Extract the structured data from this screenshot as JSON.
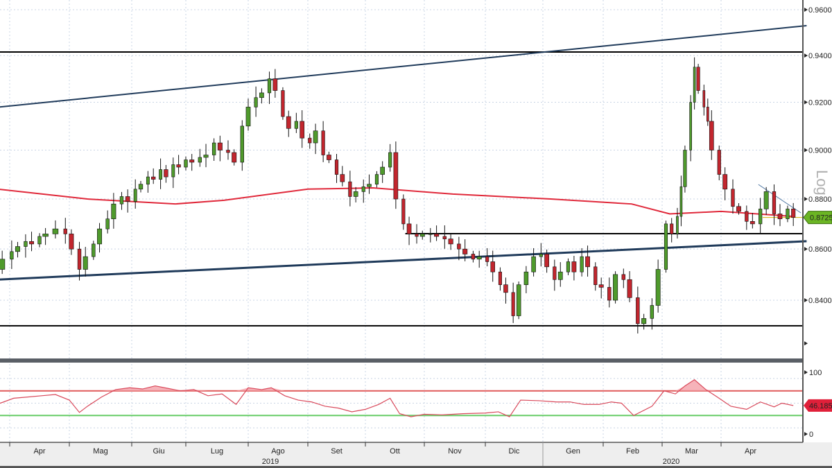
{
  "chart_data": [
    {
      "type": "candlestick",
      "scale": "log",
      "ylabel": "Log",
      "ylim": [
        0.82,
        0.965
      ],
      "yticks": [
        "0.96000",
        "0.94000",
        "0.92000",
        "0.90000",
        "0.88000",
        "0.86000",
        "0.84000"
      ],
      "ytick_values": [
        0.96,
        0.94,
        0.92,
        0.9,
        0.88,
        0.86,
        0.84
      ],
      "last_value_label": "0.87256",
      "grid": true,
      "colors": {
        "up": "#4f9a2c",
        "down": "#c2262e",
        "ma": "#e0283a",
        "trend": "#1f3a5a",
        "level": "#000000",
        "last_tag": "#6bb524"
      },
      "closes": [
        [
          "2019-03-20",
          0.858
        ],
        [
          "2019-03-25",
          0.852
        ],
        [
          "2019-03-28",
          0.856
        ],
        [
          "2019-04-02",
          0.859
        ],
        [
          "2019-04-05",
          0.861
        ],
        [
          "2019-04-09",
          0.863
        ],
        [
          "2019-04-12",
          0.862
        ],
        [
          "2019-04-16",
          0.865
        ],
        [
          "2019-04-19",
          0.866
        ],
        [
          "2019-04-24",
          0.868
        ],
        [
          "2019-04-29",
          0.866
        ],
        [
          "2019-05-02",
          0.86
        ],
        [
          "2019-05-06",
          0.852
        ],
        [
          "2019-05-09",
          0.857
        ],
        [
          "2019-05-13",
          0.862
        ],
        [
          "2019-05-16",
          0.868
        ],
        [
          "2019-05-20",
          0.872
        ],
        [
          "2019-05-23",
          0.878
        ],
        [
          "2019-05-27",
          0.881
        ],
        [
          "2019-05-30",
          0.879
        ],
        [
          "2019-06-03",
          0.884
        ],
        [
          "2019-06-06",
          0.886
        ],
        [
          "2019-06-10",
          0.889
        ],
        [
          "2019-06-13",
          0.888
        ],
        [
          "2019-06-17",
          0.892
        ],
        [
          "2019-06-20",
          0.889
        ],
        [
          "2019-06-24",
          0.894
        ],
        [
          "2019-06-27",
          0.893
        ],
        [
          "2019-07-01",
          0.896
        ],
        [
          "2019-07-04",
          0.895
        ],
        [
          "2019-07-08",
          0.897
        ],
        [
          "2019-07-11",
          0.898
        ],
        [
          "2019-07-15",
          0.903
        ],
        [
          "2019-07-18",
          0.9
        ],
        [
          "2019-07-22",
          0.899
        ],
        [
          "2019-07-25",
          0.895
        ],
        [
          "2019-07-29",
          0.91
        ],
        [
          "2019-08-01",
          0.918
        ],
        [
          "2019-08-05",
          0.922
        ],
        [
          "2019-08-08",
          0.924
        ],
        [
          "2019-08-12",
          0.93
        ],
        [
          "2019-08-15",
          0.925
        ],
        [
          "2019-08-19",
          0.914
        ],
        [
          "2019-08-22",
          0.909
        ],
        [
          "2019-08-26",
          0.912
        ],
        [
          "2019-08-29",
          0.905
        ],
        [
          "2019-09-02",
          0.903
        ],
        [
          "2019-09-05",
          0.908
        ],
        [
          "2019-09-09",
          0.898
        ],
        [
          "2019-09-12",
          0.896
        ],
        [
          "2019-09-16",
          0.89
        ],
        [
          "2019-09-19",
          0.887
        ],
        [
          "2019-09-23",
          0.881
        ],
        [
          "2019-09-26",
          0.883
        ],
        [
          "2019-09-30",
          0.885
        ],
        [
          "2019-10-03",
          0.886
        ],
        [
          "2019-10-07",
          0.89
        ],
        [
          "2019-10-10",
          0.893
        ],
        [
          "2019-10-14",
          0.899
        ],
        [
          "2019-10-17",
          0.88
        ],
        [
          "2019-10-21",
          0.87
        ],
        [
          "2019-10-24",
          0.866
        ],
        [
          "2019-10-28",
          0.865
        ],
        [
          "2019-10-31",
          0.866
        ],
        [
          "2019-11-04",
          0.866
        ],
        [
          "2019-11-07",
          0.865
        ],
        [
          "2019-11-11",
          0.864
        ],
        [
          "2019-11-14",
          0.862
        ],
        [
          "2019-11-18",
          0.86
        ],
        [
          "2019-11-21",
          0.858
        ],
        [
          "2019-11-25",
          0.856
        ],
        [
          "2019-11-28",
          0.857
        ],
        [
          "2019-12-02",
          0.855
        ],
        [
          "2019-12-05",
          0.851
        ],
        [
          "2019-12-09",
          0.846
        ],
        [
          "2019-12-12",
          0.843
        ],
        [
          "2019-12-16",
          0.834
        ],
        [
          "2019-12-19",
          0.846
        ],
        [
          "2019-12-23",
          0.851
        ],
        [
          "2019-12-27",
          0.857
        ],
        [
          "2019-12-31",
          0.858
        ],
        [
          "2020-01-03",
          0.853
        ],
        [
          "2020-01-07",
          0.848
        ],
        [
          "2020-01-10",
          0.851
        ],
        [
          "2020-01-14",
          0.855
        ],
        [
          "2020-01-17",
          0.851
        ],
        [
          "2020-01-21",
          0.857
        ],
        [
          "2020-01-24",
          0.853
        ],
        [
          "2020-01-28",
          0.846
        ],
        [
          "2020-01-31",
          0.845
        ],
        [
          "2020-02-04",
          0.84
        ],
        [
          "2020-02-07",
          0.85
        ],
        [
          "2020-02-11",
          0.848
        ],
        [
          "2020-02-14",
          0.841
        ],
        [
          "2020-02-18",
          0.831
        ],
        [
          "2020-02-21",
          0.833
        ],
        [
          "2020-02-25",
          0.838
        ],
        [
          "2020-02-28",
          0.852
        ],
        [
          "2020-03-03",
          0.87
        ],
        [
          "2020-03-06",
          0.866
        ],
        [
          "2020-03-09",
          0.873
        ],
        [
          "2020-03-11",
          0.885
        ],
        [
          "2020-03-13",
          0.9
        ],
        [
          "2020-03-16",
          0.92
        ],
        [
          "2020-03-18",
          0.935
        ],
        [
          "2020-03-20",
          0.925
        ],
        [
          "2020-03-23",
          0.918
        ],
        [
          "2020-03-25",
          0.912
        ],
        [
          "2020-03-27",
          0.9
        ],
        [
          "2020-03-31",
          0.89
        ],
        [
          "2020-04-03",
          0.884
        ],
        [
          "2020-04-07",
          0.877
        ],
        [
          "2020-04-10",
          0.875
        ],
        [
          "2020-04-14",
          0.871
        ],
        [
          "2020-04-17",
          0.87
        ],
        [
          "2020-04-21",
          0.876
        ],
        [
          "2020-04-24",
          0.883
        ],
        [
          "2020-04-28",
          0.874
        ],
        [
          "2020-05-01",
          0.872
        ],
        [
          "2020-05-05",
          0.876
        ],
        [
          "2020-05-08",
          0.87256
        ]
      ],
      "moving_average": [
        [
          "2019-03-20",
          0.8845
        ],
        [
          "2019-05-10",
          0.88
        ],
        [
          "2019-06-25",
          0.878
        ],
        [
          "2019-07-20",
          0.8795
        ],
        [
          "2019-09-01",
          0.884
        ],
        [
          "2019-10-05",
          0.8845
        ],
        [
          "2019-11-15",
          0.882
        ],
        [
          "2020-01-05",
          0.88
        ],
        [
          "2020-02-15",
          0.878
        ],
        [
          "2020-03-05",
          0.874
        ],
        [
          "2020-04-01",
          0.875
        ],
        [
          "2020-05-08",
          0.873
        ]
      ],
      "horizontal_levels": [
        {
          "value": 0.9415,
          "from": "2019-03-20",
          "to": "2020-05-15"
        },
        {
          "value": 0.8302,
          "from": "2019-03-20",
          "to": "2020-05-15"
        },
        {
          "value": 0.8661,
          "from": "2019-10-22",
          "to": "2020-05-15"
        }
      ],
      "trend_lines": [
        {
          "from": [
            "2019-03-20",
            0.9175
          ],
          "to": [
            "2020-05-15",
            0.953
          ]
        },
        {
          "from": [
            "2019-03-20",
            0.8478
          ],
          "to": [
            "2020-05-15",
            0.8631
          ],
          "bold": true
        },
        {
          "from": [
            "2020-04-20",
            0.8859
          ],
          "to": [
            "2020-05-12",
            0.8744
          ],
          "thin": true
        }
      ]
    },
    {
      "type": "line",
      "ylim": [
        0,
        100
      ],
      "yticks": [
        "100",
        "0"
      ],
      "ytick_values": [
        100,
        0
      ],
      "bands": [
        {
          "value": 70,
          "color": "#e05a5a"
        },
        {
          "value": 30,
          "color": "#66cc66"
        }
      ],
      "last_value_label": "46.1857",
      "colors": {
        "line": "#d9485a",
        "last_tag": "#e0203a"
      },
      "values": [
        [
          "2019-03-20",
          55
        ],
        [
          "2019-03-27",
          50
        ],
        [
          "2019-04-03",
          58
        ],
        [
          "2019-04-10",
          60
        ],
        [
          "2019-04-17",
          62
        ],
        [
          "2019-04-24",
          64
        ],
        [
          "2019-05-01",
          55
        ],
        [
          "2019-05-06",
          35
        ],
        [
          "2019-05-10",
          45
        ],
        [
          "2019-05-17",
          60
        ],
        [
          "2019-05-24",
          72
        ],
        [
          "2019-05-31",
          75
        ],
        [
          "2019-06-07",
          73
        ],
        [
          "2019-06-14",
          78
        ],
        [
          "2019-06-21",
          74
        ],
        [
          "2019-06-28",
          70
        ],
        [
          "2019-07-05",
          72
        ],
        [
          "2019-07-12",
          62
        ],
        [
          "2019-07-19",
          65
        ],
        [
          "2019-07-26",
          48
        ],
        [
          "2019-08-01",
          75
        ],
        [
          "2019-08-08",
          72
        ],
        [
          "2019-08-13",
          75
        ],
        [
          "2019-08-20",
          62
        ],
        [
          "2019-08-27",
          55
        ],
        [
          "2019-09-03",
          52
        ],
        [
          "2019-09-10",
          45
        ],
        [
          "2019-09-17",
          42
        ],
        [
          "2019-09-24",
          36
        ],
        [
          "2019-10-01",
          40
        ],
        [
          "2019-10-08",
          48
        ],
        [
          "2019-10-14",
          58
        ],
        [
          "2019-10-19",
          33
        ],
        [
          "2019-10-25",
          28
        ],
        [
          "2019-11-01",
          32
        ],
        [
          "2019-11-10",
          31
        ],
        [
          "2019-11-20",
          33
        ],
        [
          "2019-12-01",
          34
        ],
        [
          "2019-12-08",
          36
        ],
        [
          "2019-12-14",
          28
        ],
        [
          "2019-12-20",
          55
        ],
        [
          "2019-12-30",
          54
        ],
        [
          "2020-01-08",
          52
        ],
        [
          "2020-01-15",
          52
        ],
        [
          "2020-01-22",
          48
        ],
        [
          "2020-01-30",
          48
        ],
        [
          "2020-02-05",
          52
        ],
        [
          "2020-02-10",
          50
        ],
        [
          "2020-02-16",
          30
        ],
        [
          "2020-02-25",
          45
        ],
        [
          "2020-03-02",
          70
        ],
        [
          "2020-03-08",
          65
        ],
        [
          "2020-03-13",
          78
        ],
        [
          "2020-03-18",
          88
        ],
        [
          "2020-03-24",
          72
        ],
        [
          "2020-03-30",
          60
        ],
        [
          "2020-04-06",
          45
        ],
        [
          "2020-04-14",
          40
        ],
        [
          "2020-04-21",
          52
        ],
        [
          "2020-04-28",
          44
        ],
        [
          "2020-05-02",
          50
        ],
        [
          "2020-05-08",
          46.1857
        ]
      ]
    }
  ],
  "x_axis": {
    "months": [
      "Apr",
      "Mag",
      "Giu",
      "Lug",
      "Ago",
      "Set",
      "Ott",
      "Nov",
      "Dic",
      "Gen",
      "Feb",
      "Mar",
      "Apr"
    ],
    "years": [
      "2019",
      "2020"
    ]
  }
}
